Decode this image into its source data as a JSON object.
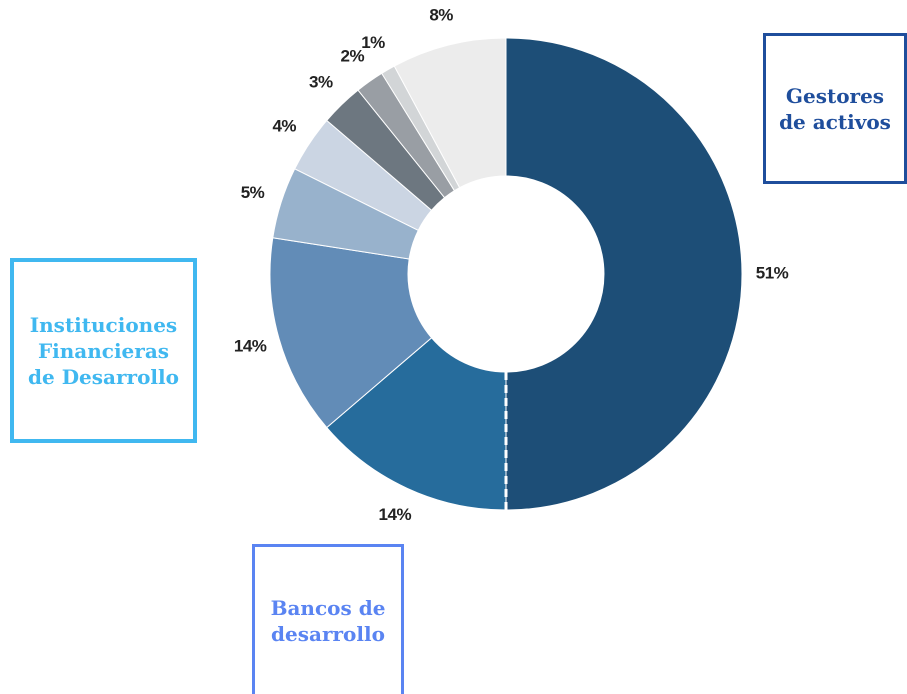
{
  "chart_data": {
    "type": "pie",
    "donut": true,
    "slices": [
      {
        "label": "Gestores de activos",
        "value": 51,
        "display": "51%",
        "color": "#1d4e77"
      },
      {
        "label": "Bancos de desarrollo",
        "value": 14,
        "display": "14%",
        "color": "#266c9c"
      },
      {
        "label": "Instituciones Financieras de Desarrollo",
        "value": 14,
        "display": "14%",
        "color": "#628cb7"
      },
      {
        "label": "",
        "value": 5,
        "display": "5%",
        "color": "#98b2cc"
      },
      {
        "label": "",
        "value": 4,
        "display": "4%",
        "color": "#cbd5e3"
      },
      {
        "label": "",
        "value": 3,
        "display": "3%",
        "color": "#6d7780"
      },
      {
        "label": "",
        "value": 2,
        "display": "2%",
        "color": "#999ea4"
      },
      {
        "label": "",
        "value": 1,
        "display": "1%",
        "color": "#d2d5d7"
      },
      {
        "label": "",
        "value": 8,
        "display": "8%",
        "color": "#ececec"
      }
    ],
    "start_angle_deg": 0,
    "direction": "clockwise",
    "divider_after_slice": 0,
    "category_boxes": [
      {
        "text": "Gestores\nde activos",
        "color": "#1f4e9c"
      },
      {
        "text": "Instituciones\nFinancieras\nde Desarrollo",
        "color": "#40b8f0"
      },
      {
        "text": "Bancos de\ndesarrollo",
        "color": "#5a84f2"
      }
    ]
  }
}
